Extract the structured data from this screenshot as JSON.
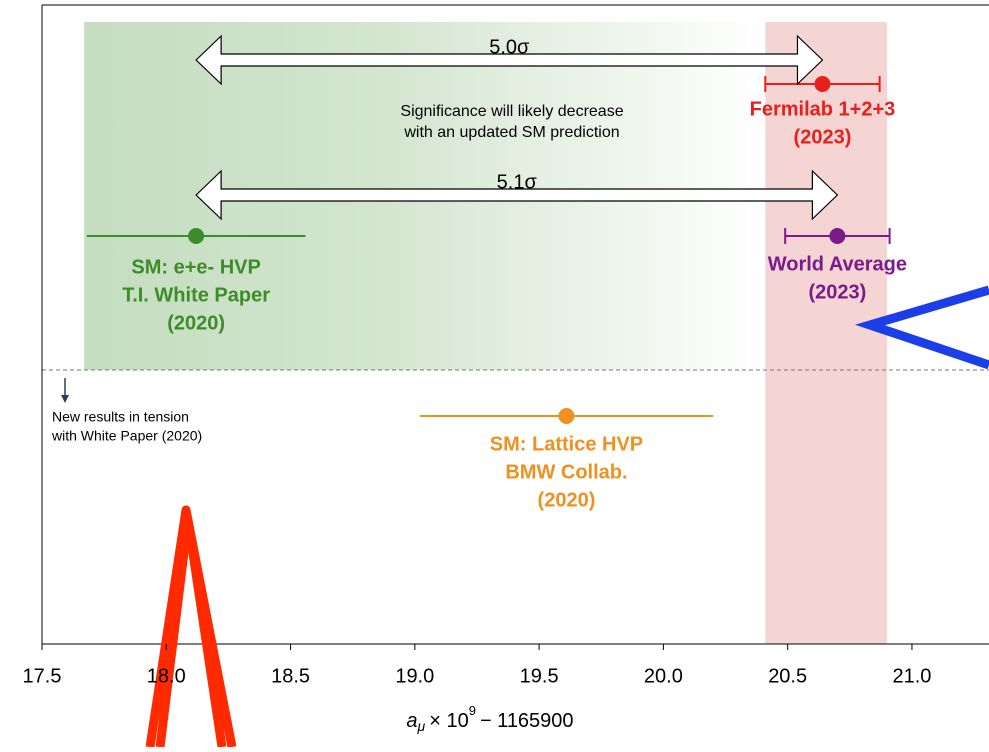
{
  "chart_data": {
    "type": "errorbar",
    "xlabel": {
      "symbol": "a",
      "sub": "μ",
      "times": "× 10",
      "sup": "9",
      "rest": "− 1165900"
    },
    "xlim": [
      17.5,
      21.31
    ],
    "xticks": [
      17.5,
      {
        "value": 18.0,
        "label": "18.0"
      },
      18.5,
      {
        "value": 19.0,
        "label": "19.0"
      },
      19.5,
      {
        "value": 20.0,
        "label": "20.0"
      },
      20.5,
      {
        "value": 21.0,
        "label": "21.0"
      }
    ],
    "bands": [
      {
        "xmin": 17.67,
        "xmax": 20.41,
        "color": "#3c8c2a",
        "fade": true
      },
      {
        "xmin": 20.41,
        "xmax": 20.9,
        "color": "#e8a0a0",
        "fade": false
      }
    ],
    "series": [
      {
        "label": [
          "Fermilab 1+2+3",
          "(2023)"
        ],
        "color": "#e8201c",
        "values": [
          20.64
        ],
        "errors": [
          0.23
        ],
        "caps": true
      },
      {
        "label": [
          "World Average",
          "(2023)"
        ],
        "color": "#7b1a8a",
        "values": [
          20.7
        ],
        "errors": [
          0.21
        ],
        "caps": true
      },
      {
        "label": [
          "SM: e+e- HVP",
          "T.I. White Paper",
          "(2020)"
        ],
        "color": "#3c8c2a",
        "values": [
          18.12
        ],
        "errors": [
          0.44
        ],
        "caps": false
      },
      {
        "label": [
          "SM: Lattice HVP",
          "BMW Collab.",
          "(2020)"
        ],
        "color": "#f0901e",
        "values": [
          19.61
        ],
        "errors": [
          0.59
        ],
        "caps": false
      }
    ],
    "arrows": [
      {
        "text": "5.0σ",
        "from": 18.12,
        "to": 20.64
      },
      {
        "text": "5.1σ",
        "from": 18.12,
        "to": 20.7
      }
    ],
    "notes": [
      [
        "Significance will likely decrease",
        "with an updated SM prediction"
      ],
      [
        "New results in tension",
        "with White Paper (2020)"
      ]
    ]
  }
}
